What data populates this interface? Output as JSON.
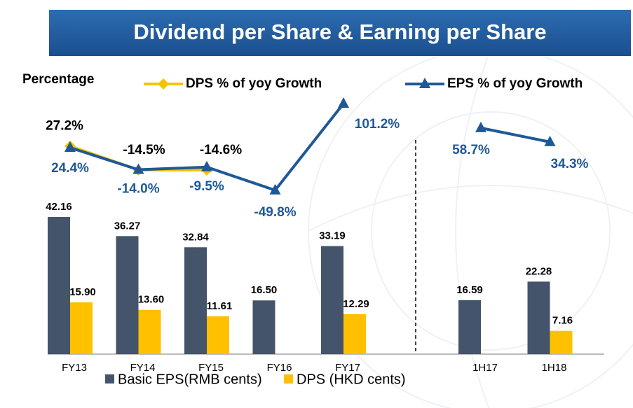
{
  "chart_data": {
    "type": "bar-line",
    "title": "Dividend per Share & Earning per Share",
    "y2_label": "Percentage",
    "categories": [
      "FY13",
      "FY14",
      "FY15",
      "FY16",
      "FY17",
      "1H17",
      "1H18"
    ],
    "divider_after": 4,
    "series": [
      {
        "name": "Basic EPS(RMB cents)",
        "color": "#44546a",
        "kind": "bar",
        "values": [
          42.16,
          36.27,
          32.84,
          16.5,
          33.19,
          16.59,
          22.28
        ],
        "value_labels": [
          "42.16",
          "36.27",
          "32.84",
          "16.50",
          "33.19",
          "16.59",
          "22.28"
        ]
      },
      {
        "name": "DPS (HKD cents)",
        "color": "#ffc000",
        "kind": "bar",
        "values": [
          15.9,
          13.6,
          11.61,
          null,
          12.29,
          null,
          7.16
        ],
        "value_labels": [
          "15.90",
          "13.60",
          "11.61",
          null,
          "12.29",
          null,
          "7.16"
        ]
      },
      {
        "name": "DPS % of yoy Growth",
        "color": "#f5c400",
        "kind": "line",
        "axis": "y2",
        "marker": "diamond",
        "values": [
          27.2,
          -14.5,
          -14.6,
          null,
          null,
          null,
          null
        ],
        "value_labels": [
          "27.2%",
          "-14.5%",
          "-14.6%",
          null,
          null,
          null,
          null
        ]
      },
      {
        "name": "EPS % of yoy Growth",
        "color": "#1f5897",
        "kind": "line",
        "axis": "y2",
        "marker": "triangle",
        "values": [
          24.4,
          -14.0,
          -9.5,
          -49.8,
          101.2,
          58.7,
          34.3
        ],
        "value_labels": [
          "24.4%",
          "-14.0%",
          "-9.5%",
          "-49.8%",
          "101.2%",
          "58.7%",
          "34.3%"
        ]
      }
    ]
  }
}
